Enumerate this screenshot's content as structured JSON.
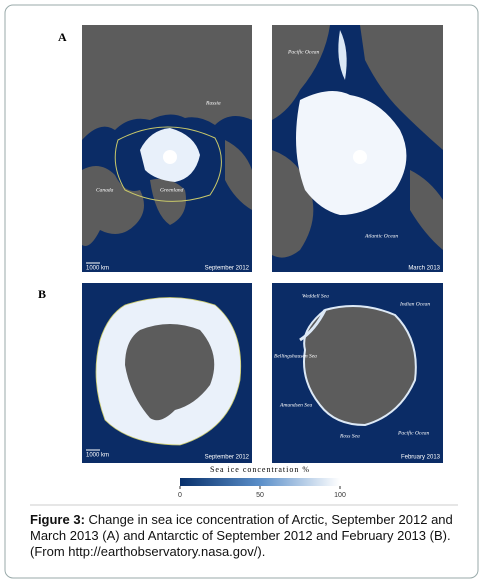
{
  "panels": [
    {
      "label": "A",
      "maps": [
        {
          "annotations": [
            "Russia",
            "Canada",
            "Greenland"
          ],
          "scale": "1000 km",
          "date": "September 2012"
        },
        {
          "annotations": [
            "Pacific Ocean",
            "Atlantic Ocean"
          ],
          "date": "March 2013"
        }
      ]
    },
    {
      "label": "B",
      "maps": [
        {
          "scale": "1000 km",
          "date": "September 2012"
        },
        {
          "annotations": [
            "Weddell Sea",
            "Indian Ocean",
            "Bellingshausen Sea",
            "Amundsen Sea",
            "Ross Sea",
            "Pacific Ocean"
          ],
          "date": "February 2013"
        }
      ]
    }
  ],
  "colorbar": {
    "title": "Sea ice concentration %",
    "lim": [
      0,
      100
    ],
    "ticks": [
      0,
      50,
      100
    ]
  },
  "caption": {
    "label": "Figure 3:",
    "text": "Change in sea ice concentration of Arctic, September 2012 and March 2013 (A) and Antarctic of September 2012 and February 2013 (B). (From http://earthobservatory.nasa.gov/)."
  }
}
